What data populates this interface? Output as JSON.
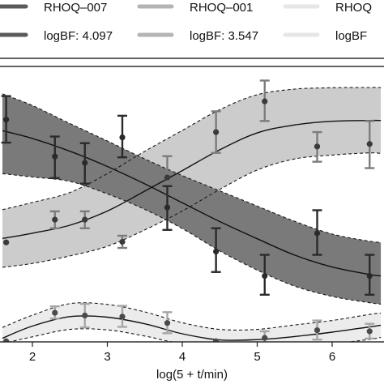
{
  "chart_data": {
    "type": "line",
    "xlabel": "log(5 + t/min)",
    "ylabel": "",
    "xlim": [
      1.6,
      6.65
    ],
    "ylim": [
      0,
      1
    ],
    "x_ticks": [
      2,
      3,
      4,
      5,
      6
    ],
    "grid": false,
    "legend": {
      "placement": "top",
      "entries": [
        {
          "label": "RHOQ–007",
          "logbf_label": "logBF:",
          "logbf": "4.097",
          "color": "#5a5a5a"
        },
        {
          "label": "RHOQ–001",
          "logbf_label": "logBF:",
          "logbf": "3.547",
          "color": "#b4b4b4"
        },
        {
          "label": "RHOQ",
          "logbf_label": "logBF",
          "logbf": "",
          "color": "#e6e6e6"
        }
      ]
    },
    "series": [
      {
        "name": "RHOQ–007",
        "fill_color": "#7a7a7a",
        "point_color": "#2a2a2a",
        "points": [
          {
            "x": 1.65,
            "y": 0.808,
            "yerr": [
              0.725,
              0.893
            ]
          },
          {
            "x": 2.3,
            "y": 0.675,
            "yerr": [
              0.597,
              0.747
            ]
          },
          {
            "x": 2.7,
            "y": 0.652,
            "yerr": [
              0.577,
              0.723
            ]
          },
          {
            "x": 3.2,
            "y": 0.744,
            "yerr": [
              0.672,
              0.822
            ]
          },
          {
            "x": 3.8,
            "y": 0.491,
            "yerr": [
              0.41,
              0.568
            ]
          },
          {
            "x": 4.45,
            "y": 0.332,
            "yerr": [
              0.258,
              0.416
            ]
          },
          {
            "x": 5.1,
            "y": 0.244,
            "yerr": [
              0.176,
              0.32
            ]
          },
          {
            "x": 5.8,
            "y": 0.398,
            "yerr": [
              0.32,
              0.481
            ]
          },
          {
            "x": 6.5,
            "y": 0.244,
            "yerr": [
              0.176,
              0.32
            ]
          }
        ],
        "curve_x": [
          1.6,
          2.0,
          2.5,
          3.0,
          3.5,
          4.0,
          4.5,
          5.0,
          5.5,
          6.0,
          6.5,
          6.65
        ],
        "curve_mean": [
          0.768,
          0.74,
          0.694,
          0.639,
          0.576,
          0.508,
          0.44,
          0.378,
          0.319,
          0.276,
          0.249,
          0.244
        ],
        "band_upper": [
          0.901,
          0.859,
          0.794,
          0.731,
          0.666,
          0.606,
          0.551,
          0.496,
          0.441,
          0.395,
          0.369,
          0.365
        ],
        "band_lower": [
          0.613,
          0.601,
          0.585,
          0.54,
          0.484,
          0.415,
          0.334,
          0.265,
          0.207,
          0.17,
          0.147,
          0.142
        ]
      },
      {
        "name": "RHOQ–001",
        "fill_color": "#cccccc",
        "point_color": "#3a3a3a",
        "points": [
          {
            "x": 1.65,
            "y": 0.365,
            "yerr": [
              0.365,
              0.365
            ]
          },
          {
            "x": 2.3,
            "y": 0.447,
            "yerr": [
              0.416,
              0.477
            ]
          },
          {
            "x": 2.7,
            "y": 0.447,
            "yerr": [
              0.416,
              0.477
            ]
          },
          {
            "x": 3.2,
            "y": 0.367,
            "yerr": [
              0.345,
              0.389
            ]
          },
          {
            "x": 3.8,
            "y": 0.599,
            "yerr": [
              0.522,
              0.676
            ]
          },
          {
            "x": 4.45,
            "y": 0.763,
            "yerr": [
              0.688,
              0.838
            ]
          },
          {
            "x": 5.1,
            "y": 0.874,
            "yerr": [
              0.803,
              0.949
            ]
          },
          {
            "x": 5.8,
            "y": 0.711,
            "yerr": [
              0.656,
              0.763
            ]
          },
          {
            "x": 6.5,
            "y": 0.72,
            "yerr": [
              0.633,
              0.803
            ]
          }
        ],
        "curve_x": [
          1.6,
          2.0,
          2.5,
          3.0,
          3.5,
          4.0,
          4.5,
          5.0,
          5.5,
          6.0,
          6.5,
          6.65
        ],
        "curve_mean": [
          0.379,
          0.398,
          0.427,
          0.478,
          0.55,
          0.624,
          0.699,
          0.76,
          0.789,
          0.802,
          0.805,
          0.805
        ],
        "band_upper": [
          0.483,
          0.509,
          0.545,
          0.613,
          0.694,
          0.769,
          0.844,
          0.898,
          0.918,
          0.923,
          0.924,
          0.924
        ],
        "band_lower": [
          0.275,
          0.289,
          0.316,
          0.351,
          0.41,
          0.478,
          0.556,
          0.626,
          0.666,
          0.68,
          0.688,
          0.686
        ]
      },
      {
        "name": "RHOQ",
        "fill_color": "#ececec",
        "point_color": "#4a4a4a",
        "points": [
          {
            "x": 1.65,
            "y": 0.008,
            "yerr": [
              0.008,
              0.008
            ]
          },
          {
            "x": 2.3,
            "y": 0.111,
            "yerr": [
              0.09,
              0.134
            ]
          },
          {
            "x": 2.7,
            "y": 0.101,
            "yerr": [
              0.058,
              0.143
            ]
          },
          {
            "x": 3.2,
            "y": 0.097,
            "yerr": [
              0.06,
              0.136
            ]
          },
          {
            "x": 3.8,
            "y": 0.074,
            "yerr": [
              0.037,
              0.113
            ]
          },
          {
            "x": 4.45,
            "y": 0.008,
            "yerr": [
              0.008,
              0.008
            ]
          },
          {
            "x": 5.1,
            "y": 0.02,
            "yerr": [
              0.0,
              0.044
            ]
          },
          {
            "x": 5.8,
            "y": 0.048,
            "yerr": [
              0.014,
              0.083
            ]
          },
          {
            "x": 6.5,
            "y": 0.044,
            "yerr": [
              0.018,
              0.071
            ]
          }
        ],
        "curve_x": [
          1.6,
          2.0,
          2.5,
          3.0,
          3.5,
          4.0,
          4.5,
          5.0,
          5.5,
          6.0,
          6.5,
          6.65
        ],
        "curve_mean": [
          0.019,
          0.063,
          0.097,
          0.095,
          0.071,
          0.035,
          0.013,
          0.014,
          0.025,
          0.041,
          0.06,
          0.066
        ],
        "band_upper": [
          0.058,
          0.102,
          0.144,
          0.141,
          0.114,
          0.075,
          0.051,
          0.051,
          0.067,
          0.083,
          0.105,
          0.11
        ],
        "band_lower": [
          0.0,
          0.024,
          0.051,
          0.049,
          0.027,
          0.0,
          0.0,
          0.0,
          0.0,
          0.0,
          0.015,
          0.022
        ]
      }
    ]
  }
}
